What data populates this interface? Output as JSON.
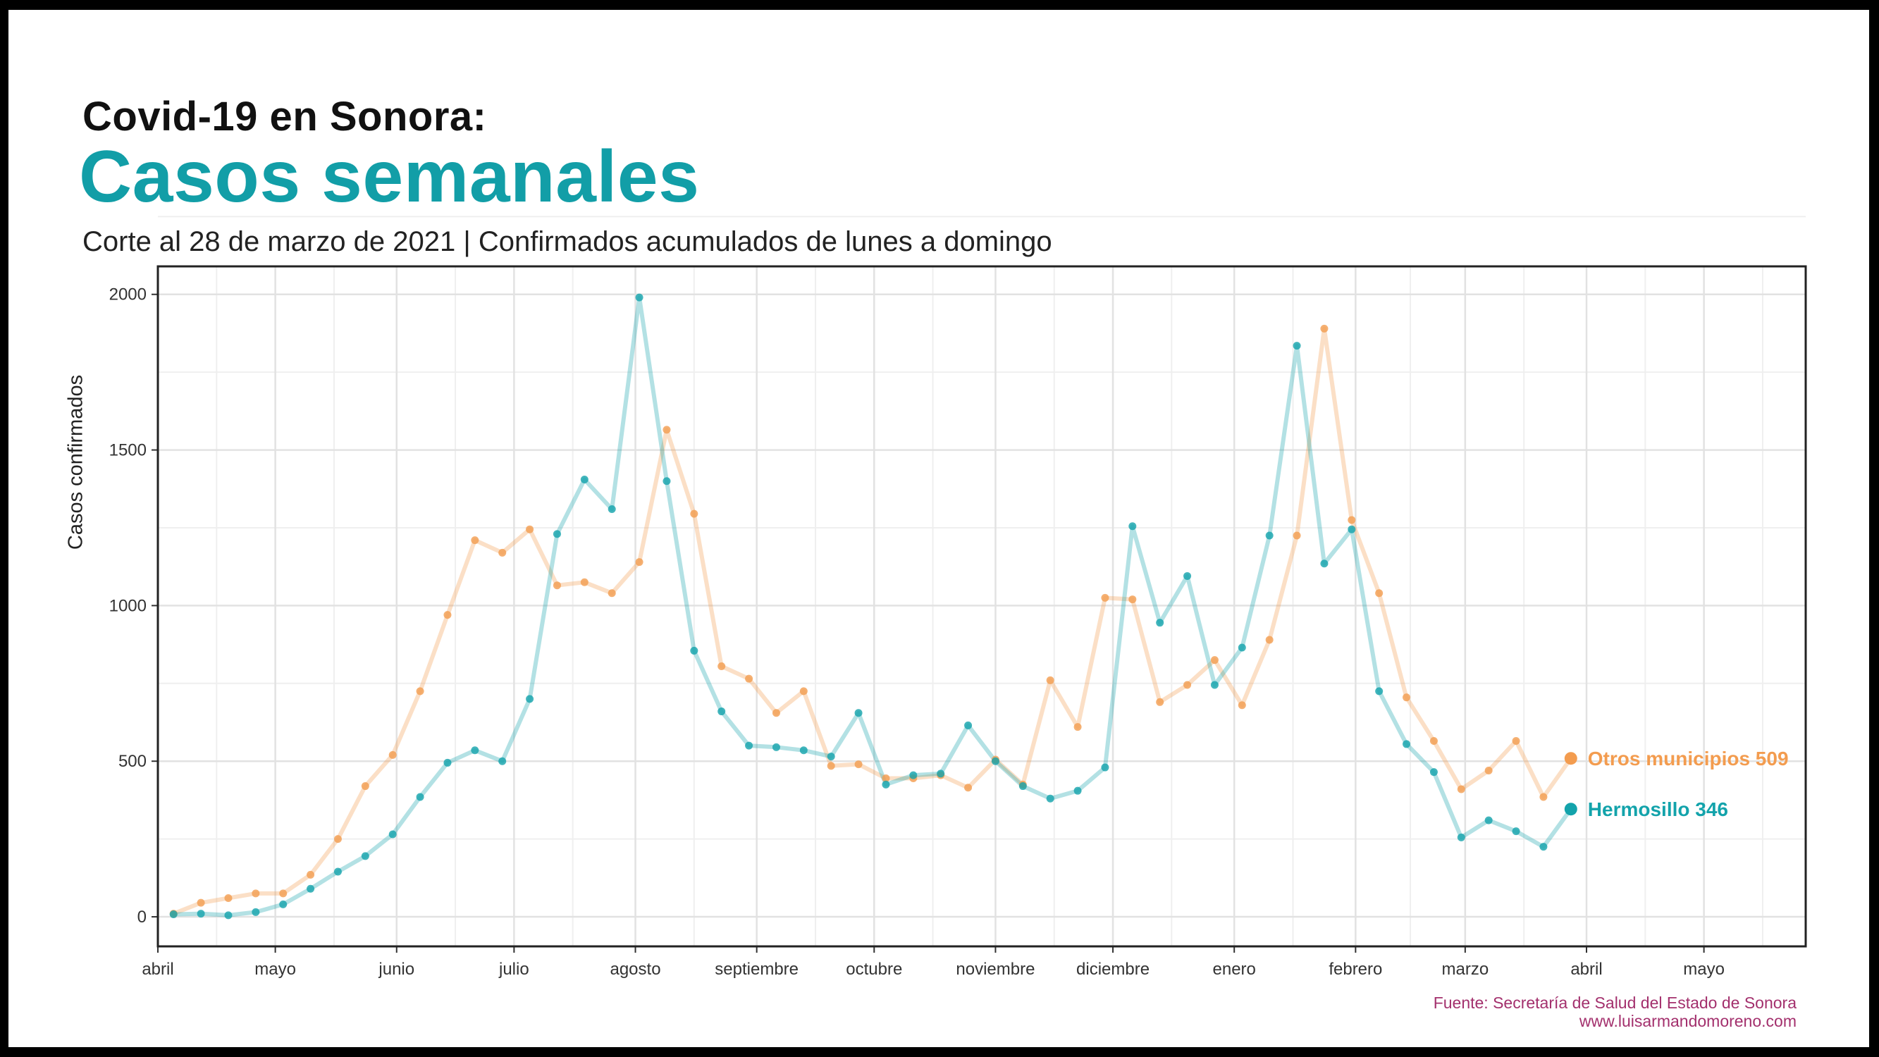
{
  "header": {
    "pretitle": "Covid-19 en Sonora:",
    "title": "Casos semanales",
    "subtitle": "Corte al 28 de marzo de 2021 | Confirmados acumulados de lunes a domingo"
  },
  "footer": {
    "source": "Fuente: Secretaría de Salud del Estado de Sonora",
    "website": "www.luisarmandomoreno.com"
  },
  "colors": {
    "otros": "#f39c4f",
    "hermosillo": "#13a3ab"
  },
  "chart_data": {
    "type": "line",
    "title": "Casos semanales",
    "ylabel": "Casos confirmados",
    "xlabel": "",
    "ylim": [
      -95,
      2090
    ],
    "xlim": [
      "2020-04-01",
      "2021-05-27"
    ],
    "yticks": [
      0,
      500,
      1000,
      1500,
      2000
    ],
    "xticks": [
      {
        "date": "2020-04-01",
        "label": "abril"
      },
      {
        "date": "2020-05-01",
        "label": "mayo"
      },
      {
        "date": "2020-06-01",
        "label": "junio"
      },
      {
        "date": "2020-07-01",
        "label": "julio"
      },
      {
        "date": "2020-08-01",
        "label": "agosto"
      },
      {
        "date": "2020-09-01",
        "label": "septiembre"
      },
      {
        "date": "2020-10-01",
        "label": "octubre"
      },
      {
        "date": "2020-11-01",
        "label": "noviembre"
      },
      {
        "date": "2020-12-01",
        "label": "diciembre"
      },
      {
        "date": "2021-01-01",
        "label": "enero"
      },
      {
        "date": "2021-02-01",
        "label": "febrero"
      },
      {
        "date": "2021-03-01",
        "label": "marzo"
      },
      {
        "date": "2021-04-01",
        "label": "abril"
      },
      {
        "date": "2021-05-01",
        "label": "mayo"
      }
    ],
    "grid": true,
    "x": [
      "2020-04-05",
      "2020-04-12",
      "2020-04-19",
      "2020-04-26",
      "2020-05-03",
      "2020-05-10",
      "2020-05-17",
      "2020-05-24",
      "2020-05-31",
      "2020-06-07",
      "2020-06-14",
      "2020-06-21",
      "2020-06-28",
      "2020-07-05",
      "2020-07-12",
      "2020-07-19",
      "2020-07-26",
      "2020-08-02",
      "2020-08-09",
      "2020-08-16",
      "2020-08-23",
      "2020-08-30",
      "2020-09-06",
      "2020-09-13",
      "2020-09-20",
      "2020-09-27",
      "2020-10-04",
      "2020-10-11",
      "2020-10-18",
      "2020-10-25",
      "2020-11-01",
      "2020-11-08",
      "2020-11-15",
      "2020-11-22",
      "2020-11-29",
      "2020-12-06",
      "2020-12-13",
      "2020-12-20",
      "2020-12-27",
      "2021-01-03",
      "2021-01-10",
      "2021-01-17",
      "2021-01-24",
      "2021-01-31",
      "2021-02-07",
      "2021-02-14",
      "2021-02-21",
      "2021-02-28",
      "2021-03-07",
      "2021-03-14",
      "2021-03-21",
      "2021-03-28"
    ],
    "series": [
      {
        "name": "Otros municipios",
        "end_label": "Otros municipios 509",
        "color": "#f39c4f",
        "values": [
          10,
          45,
          60,
          75,
          75,
          135,
          250,
          420,
          520,
          725,
          970,
          1210,
          1170,
          1245,
          1065,
          1075,
          1040,
          1140,
          1565,
          1295,
          805,
          765,
          655,
          725,
          485,
          490,
          445,
          445,
          455,
          415,
          505,
          425,
          760,
          610,
          1025,
          1020,
          690,
          745,
          825,
          680,
          890,
          1225,
          1890,
          1275,
          1040,
          705,
          565,
          410,
          470,
          565,
          385,
          509
        ]
      },
      {
        "name": "Hermosillo",
        "end_label": "Hermosillo 346",
        "color": "#13a3ab",
        "values": [
          8,
          10,
          5,
          15,
          40,
          90,
          145,
          195,
          265,
          385,
          495,
          535,
          500,
          700,
          1230,
          1405,
          1310,
          1990,
          1400,
          855,
          660,
          550,
          545,
          535,
          515,
          655,
          425,
          455,
          460,
          615,
          500,
          420,
          380,
          405,
          480,
          1255,
          945,
          1095,
          745,
          865,
          1225,
          1835,
          1135,
          1245,
          725,
          555,
          465,
          255,
          310,
          275,
          225,
          346
        ]
      }
    ]
  }
}
